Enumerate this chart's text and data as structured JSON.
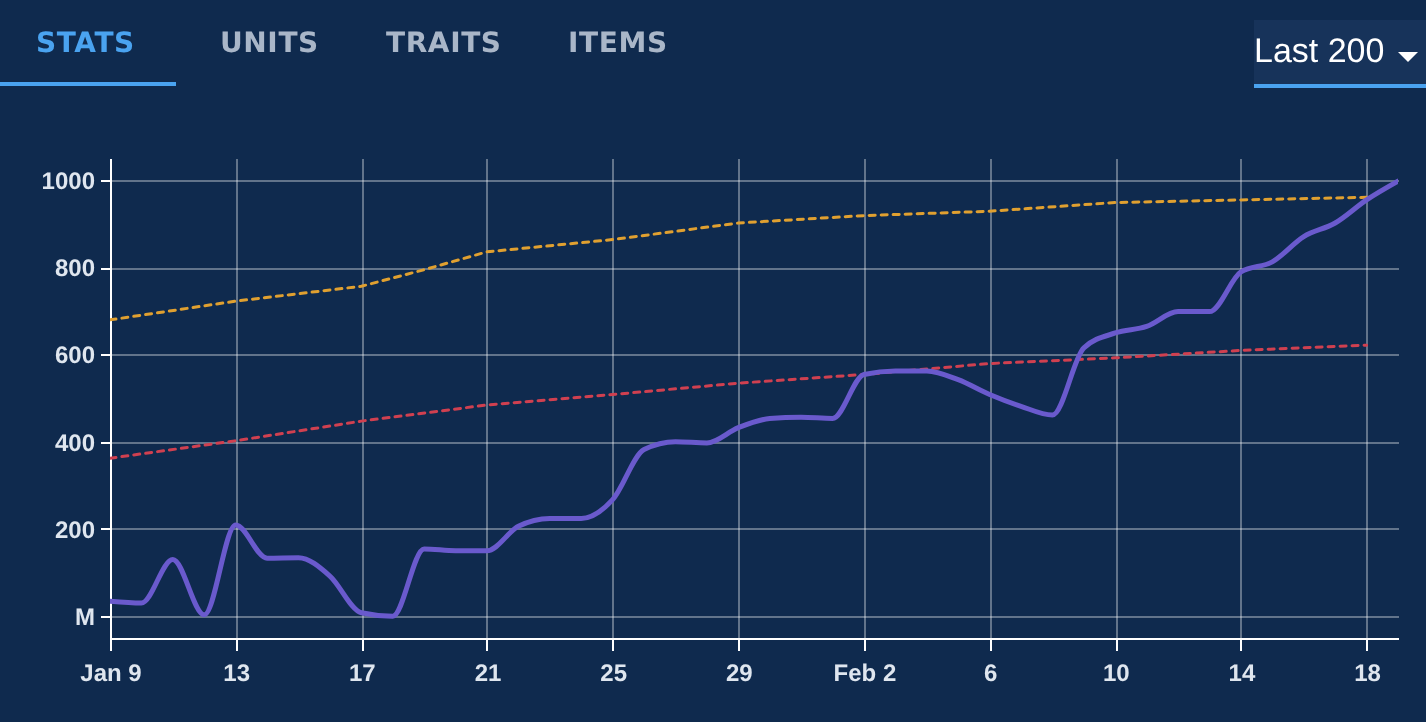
{
  "chart_data": [
    {
      "type": "other",
      "annotations": [
        "STATS",
        "UNITS",
        "TRAITS",
        "ITEMS",
        "Last 200"
      ]
    },
    {
      "type": "line",
      "grid": true,
      "marker": "none",
      "xlim": [
        "--01-09",
        "--02-19"
      ],
      "xticks": [
        {
          "value": "--01-09",
          "label": "Jan 9"
        },
        {
          "value": "--01-13",
          "label": "13"
        },
        {
          "value": "--01-17",
          "label": "17"
        },
        {
          "value": "--01-21",
          "label": "21"
        },
        {
          "value": "--01-25",
          "label": "25"
        },
        {
          "value": "--01-29",
          "label": "29"
        },
        {
          "value": "--02-02",
          "label": "Feb 2"
        },
        {
          "value": "--02-06",
          "label": "6"
        },
        {
          "value": "--02-10",
          "label": "10"
        },
        {
          "value": "--02-14",
          "label": "14"
        },
        {
          "value": "--02-18",
          "label": "18"
        }
      ],
      "ylim": [
        -50,
        1050
      ],
      "yticks": [
        {
          "value": 0,
          "label": "M"
        },
        200,
        400,
        600,
        800,
        1000
      ],
      "series": [
        {
          "color": "#e0a030",
          "line_style": "dashed",
          "x": [
            "--01-09",
            "--01-13",
            "--01-17",
            "--01-19",
            "--01-21",
            "--01-25",
            "--01-29",
            "--02-02",
            "--02-06",
            "--02-10",
            "--02-14",
            "--02-18"
          ],
          "values": [
            679,
            722,
            756,
            794,
            835,
            863,
            901,
            918,
            928,
            948,
            954,
            960
          ]
        },
        {
          "color": "#d04050",
          "line_style": "dashed",
          "x": [
            "--01-09",
            "--01-13",
            "--01-17",
            "--01-21",
            "--01-25",
            "--01-29",
            "--02-02",
            "--02-06",
            "--02-10",
            "--02-14",
            "--02-18"
          ],
          "values": [
            362,
            402,
            447,
            484,
            508,
            534,
            554,
            579,
            592,
            609,
            621
          ]
        },
        {
          "color": "#6a5acd",
          "line_style": "solid",
          "x": [
            "--01-09",
            "--01-10",
            "--01-11",
            "--01-12",
            "--01-13",
            "--01-14",
            "--01-15",
            "--01-16",
            "--01-17",
            "--01-18",
            "--01-19",
            "--01-20",
            "--01-21",
            "--01-22",
            "--01-23",
            "--01-24",
            "--01-25",
            "--01-26",
            "--01-27",
            "--01-28",
            "--01-29",
            "--01-30",
            "--01-31",
            "--02-01",
            "--02-02",
            "--02-03",
            "--02-04",
            "--02-05",
            "--02-06",
            "--02-07",
            "--02-08",
            "--02-09",
            "--02-10",
            "--02-11",
            "--02-12",
            "--02-13",
            "--02-14",
            "--02-15",
            "--02-16",
            "--02-17",
            "--02-18",
            "--02-19"
          ],
          "values": [
            34,
            30,
            130,
            3,
            209,
            133,
            134,
            92,
            8,
            0,
            154,
            150,
            150,
            206,
            224,
            224,
            267,
            382,
            400,
            397,
            432,
            453,
            456,
            453,
            554,
            562,
            562,
            542,
            508,
            481,
            461,
            615,
            649,
            664,
            698,
            698,
            789,
            812,
            870,
            901,
            954,
            997
          ]
        }
      ]
    }
  ]
}
